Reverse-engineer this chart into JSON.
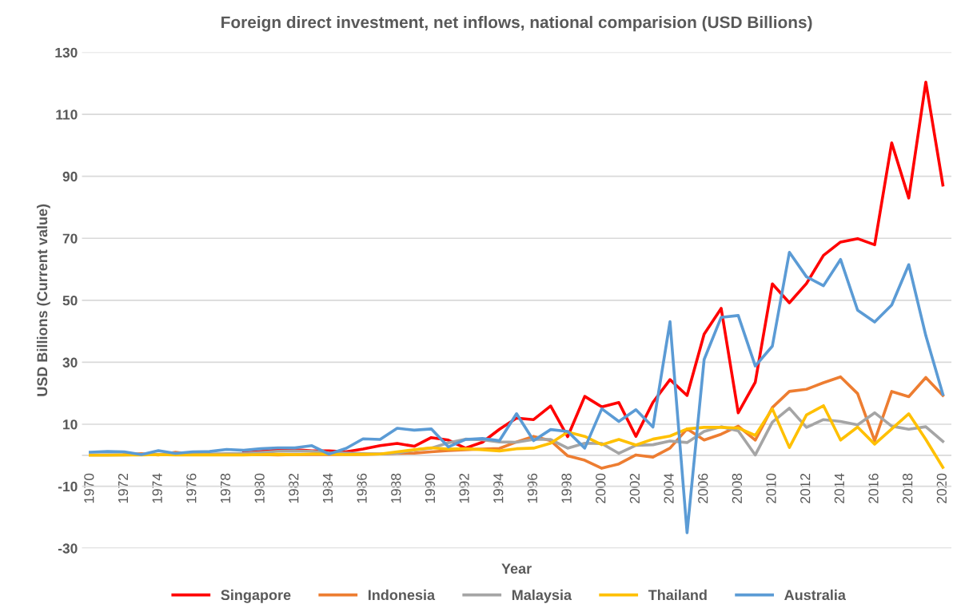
{
  "chart_data": {
    "type": "line",
    "title": "Foreign direct investment, net inflows, national comparision (USD Billions)",
    "xlabel": "Year",
    "ylabel": "USD Billions (Current value)",
    "x": [
      1970,
      1971,
      1972,
      1973,
      1974,
      1975,
      1976,
      1977,
      1978,
      1979,
      1980,
      1981,
      1982,
      1983,
      1984,
      1985,
      1986,
      1987,
      1988,
      1989,
      1990,
      1991,
      1992,
      1993,
      1994,
      1995,
      1996,
      1997,
      1998,
      1999,
      2000,
      2001,
      2002,
      2003,
      2004,
      2005,
      2006,
      2007,
      2008,
      2009,
      2010,
      2011,
      2012,
      2013,
      2014,
      2015,
      2016,
      2017,
      2018,
      2019,
      2020
    ],
    "xlim": [
      1969.5,
      2020.5
    ],
    "xticks": [
      1970,
      1972,
      1974,
      1976,
      1978,
      1980,
      1982,
      1984,
      1986,
      1988,
      1990,
      1992,
      1994,
      1996,
      1998,
      2000,
      2002,
      2004,
      2006,
      2008,
      2010,
      2012,
      2014,
      2016,
      2018,
      2020
    ],
    "ylim": [
      -30,
      130
    ],
    "yticks": [
      -30,
      -10,
      10,
      30,
      50,
      70,
      90,
      110,
      130
    ],
    "grid": "y",
    "legend": "bottom",
    "marker": "none",
    "line_style": "solid",
    "ref_lines": [
      {
        "axis": "y",
        "value": 0,
        "color": "#d9d9d9"
      }
    ],
    "series": [
      {
        "name": "Singapore",
        "color": "#ff0000",
        "values": [
          null,
          null,
          null,
          null,
          null,
          null,
          null,
          null,
          null,
          0.8,
          1.2,
          1.7,
          1.8,
          1.4,
          1.4,
          1.1,
          2.0,
          3.1,
          3.8,
          2.9,
          5.7,
          4.9,
          2.3,
          4.2,
          8.4,
          12,
          11.5,
          15.9,
          6,
          19,
          15.6,
          17,
          6.1,
          17.1,
          24.4,
          19.3,
          39.1,
          47.4,
          13.7,
          23.6,
          55.3,
          49.2,
          55.4,
          64.5,
          68.8,
          69.9,
          67.9,
          100.8,
          83,
          120.4,
          87.2
        ]
      },
      {
        "name": "Indonesia",
        "color": "#ed7d31",
        "values": [
          null,
          null,
          0.2,
          0.5,
          0.1,
          1.0,
          0.3,
          0.2,
          0.3,
          0.2,
          0.2,
          0.1,
          0.2,
          0.3,
          0.2,
          0.3,
          0.3,
          0.4,
          0.6,
          0.7,
          1.1,
          1.5,
          1.8,
          2.0,
          2.2,
          4.3,
          6.1,
          4.7,
          -0.2,
          -1.6,
          -4.2,
          -2.8,
          0.1,
          -0.6,
          2.3,
          8.5,
          4.9,
          6.8,
          9.4,
          4.9,
          15.4,
          20.6,
          21.3,
          23.4,
          25.3,
          19.9,
          4.7,
          20.6,
          18.9,
          25.1,
          19.3
        ]
      },
      {
        "name": "Malaysia",
        "color": "#a5a5a5",
        "values": [
          0.1,
          0.1,
          0.1,
          0.2,
          0.3,
          0.3,
          0.3,
          0.4,
          0.5,
          0.6,
          0.9,
          1.3,
          1.4,
          1.3,
          0.8,
          0.7,
          0.5,
          0.4,
          0.7,
          1.7,
          2.3,
          4.0,
          5.2,
          5.0,
          4.3,
          4.2,
          5.1,
          5.1,
          2.3,
          3.9,
          3.8,
          0.6,
          3.2,
          3.4,
          4.6,
          4.1,
          7.7,
          9.2,
          7.9,
          0.1,
          10.7,
          15.2,
          9,
          11.5,
          10.9,
          9.8,
          13.7,
          9.4,
          8.4,
          9.2,
          4.5
        ]
      },
      {
        "name": "Thailand",
        "color": "#ffc000",
        "values": [
          0.0,
          0.0,
          0.1,
          0.1,
          0.2,
          0.1,
          0.1,
          0.1,
          0.1,
          0.1,
          0.2,
          0.3,
          0.2,
          0.4,
          0.4,
          0.2,
          0.3,
          0.4,
          1.1,
          1.8,
          2.4,
          2.0,
          2.1,
          1.8,
          1.4,
          2.1,
          2.3,
          3.9,
          7.5,
          6.1,
          3.4,
          5.1,
          3.3,
          5.2,
          6.2,
          8.5,
          9,
          9,
          8.8,
          6.4,
          15,
          2.5,
          13,
          16,
          4.9,
          9.1,
          3.6,
          8.5,
          13.4,
          5.1,
          -3.9
        ]
      },
      {
        "name": "Australia",
        "color": "#5b9bd5",
        "values": [
          1.0,
          1.2,
          1.1,
          0.2,
          1.5,
          0.6,
          1.1,
          1.2,
          1.9,
          1.6,
          2.1,
          2.4,
          2.4,
          3.1,
          0.4,
          2.2,
          5.3,
          5.1,
          8.7,
          8.1,
          8.5,
          2.7,
          5.1,
          5.4,
          4.7,
          13.4,
          4.7,
          8.3,
          7.7,
          2.3,
          15,
          10.9,
          14.7,
          9.1,
          43.1,
          -25,
          30.9,
          44.5,
          45.1,
          28.8,
          35.2,
          65.5,
          57.6,
          54.7,
          63.2,
          46.8,
          43,
          48.5,
          61.5,
          38.6,
          19.7
        ]
      }
    ]
  }
}
